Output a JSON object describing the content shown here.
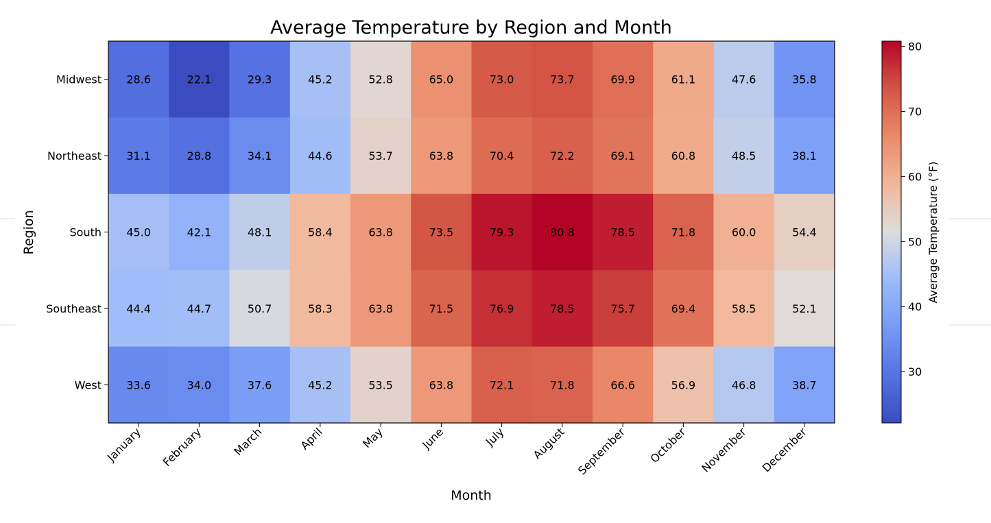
{
  "chart_data": {
    "type": "heatmap",
    "title": "Average Temperature by Region and Month",
    "xlabel": "Month",
    "ylabel": "Region",
    "x_categories": [
      "January",
      "February",
      "March",
      "April",
      "May",
      "June",
      "July",
      "August",
      "September",
      "October",
      "November",
      "December"
    ],
    "y_categories": [
      "Midwest",
      "Northeast",
      "South",
      "Southeast",
      "West"
    ],
    "values": [
      [
        28.6,
        22.1,
        29.3,
        45.2,
        52.8,
        65.0,
        73.0,
        73.7,
        69.9,
        61.1,
        47.6,
        35.8
      ],
      [
        31.1,
        28.8,
        34.1,
        44.6,
        53.7,
        63.8,
        70.4,
        72.2,
        69.1,
        60.8,
        48.5,
        38.1
      ],
      [
        45.0,
        42.1,
        48.1,
        58.4,
        63.8,
        73.5,
        79.3,
        80.8,
        78.5,
        71.8,
        60.0,
        54.4
      ],
      [
        44.4,
        44.7,
        50.7,
        58.3,
        63.8,
        71.5,
        76.9,
        78.5,
        75.7,
        69.4,
        58.5,
        52.1
      ],
      [
        33.6,
        34.0,
        37.6,
        45.2,
        53.5,
        63.8,
        72.1,
        71.8,
        66.6,
        56.9,
        46.8,
        38.7
      ]
    ],
    "colormap": "coolwarm",
    "value_range": [
      22.1,
      80.8
    ],
    "annotations": "values shown in each cell with one decimal",
    "grid": false,
    "colorbar": {
      "label": "Average Temperature (°F)",
      "ticks": [
        30,
        40,
        50,
        60,
        70,
        80
      ],
      "placement": "right"
    }
  }
}
